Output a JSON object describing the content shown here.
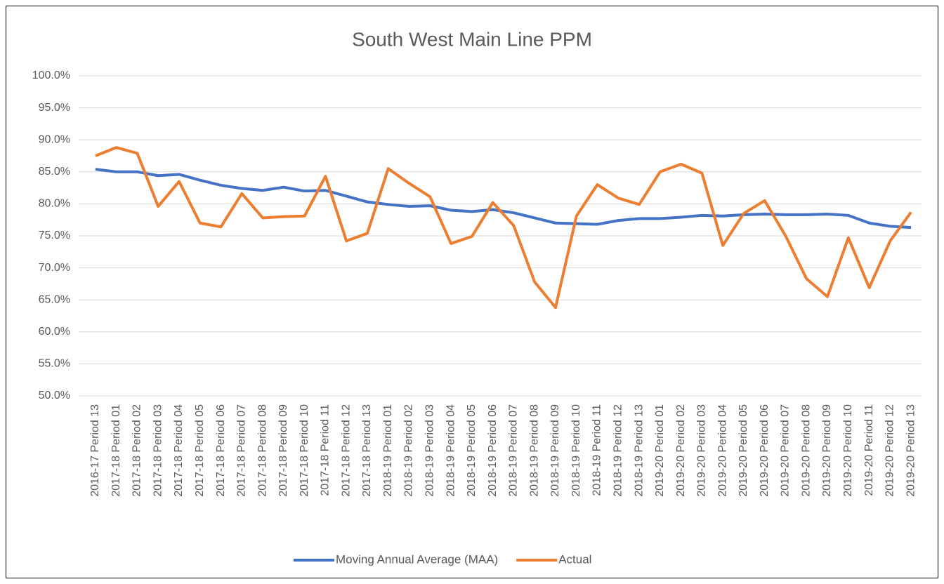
{
  "chart_data": {
    "type": "line",
    "title": "South West Main Line PPM",
    "categories": [
      "2016-17 Period 13",
      "2017-18 Period 01",
      "2017-18 Period 02",
      "2017-18 Period 03",
      "2017-18 Period 04",
      "2017-18 Period 05",
      "2017-18 Period 06",
      "2017-18 Period 07",
      "2017-18 Period 08",
      "2017-18 Period 09",
      "2017-18 Period 10",
      "2017-18 Period 11",
      "2017-18 Period 12",
      "2017-18 Period 13",
      "2018-19 Period 01",
      "2018-19 Period 02",
      "2018-19 Period 03",
      "2018-19 Period 04",
      "2018-19 Period 05",
      "2018-19 Period 06",
      "2018-19 Period 07",
      "2018-19 Period 08",
      "2018-19 Period 09",
      "2018-19 Period 10",
      "2018-19 Period 11",
      "2018-19 Period 12",
      "2018-19 Period 13",
      "2019-20 Period 01",
      "2019-20 Period 02",
      "2019-20 Period 03",
      "2019-20 Period 04",
      "2019-20 Period 05",
      "2019-20 Period 06",
      "2019-20 Period 07",
      "2019-20 Period 08",
      "2019-20 Period 09",
      "2019-20 Period 10",
      "2019-20 Period 11",
      "2019-20 Period 12",
      "2019-20 Period 13"
    ],
    "series": [
      {
        "name": "Moving Annual Average (MAA)",
        "color": "#4472c4",
        "values": [
          85.4,
          85.0,
          85.0,
          84.4,
          84.6,
          83.7,
          82.9,
          82.4,
          82.1,
          82.6,
          82.0,
          82.1,
          81.2,
          80.3,
          79.9,
          79.6,
          79.7,
          79.0,
          78.8,
          79.1,
          78.6,
          77.8,
          77.0,
          76.9,
          76.8,
          77.4,
          77.7,
          77.7,
          77.9,
          78.2,
          78.1,
          78.3,
          78.4,
          78.3,
          78.3,
          78.4,
          78.2,
          77.0,
          76.5,
          76.3
        ]
      },
      {
        "name": "Actual",
        "color": "#ed7d31",
        "values": [
          87.5,
          88.8,
          87.9,
          79.6,
          83.5,
          77.0,
          76.4,
          81.6,
          77.8,
          78.0,
          78.1,
          84.3,
          74.2,
          75.4,
          85.5,
          83.2,
          81.1,
          73.8,
          74.9,
          80.2,
          76.6,
          67.8,
          63.8,
          78.1,
          83.0,
          80.9,
          79.9,
          85.0,
          86.2,
          84.8,
          73.5,
          78.5,
          80.5,
          75.0,
          68.3,
          65.5,
          74.7,
          66.9,
          74.2,
          78.7
        ]
      }
    ],
    "ylim": [
      50,
      100
    ],
    "yticks": [
      {
        "value": 50,
        "label": "50.0%"
      },
      {
        "value": 55,
        "label": "55.0%"
      },
      {
        "value": 60,
        "label": "60.0%"
      },
      {
        "value": 65,
        "label": "65.0%"
      },
      {
        "value": 70,
        "label": "70.0%"
      },
      {
        "value": 75,
        "label": "75.0%"
      },
      {
        "value": 80,
        "label": "80.0%"
      },
      {
        "value": 85,
        "label": "85.0%"
      },
      {
        "value": 90,
        "label": "90.0%"
      },
      {
        "value": 95,
        "label": "95.0%"
      },
      {
        "value": 100,
        "label": "100.0%"
      }
    ],
    "grid": true,
    "legend": "bottom"
  }
}
